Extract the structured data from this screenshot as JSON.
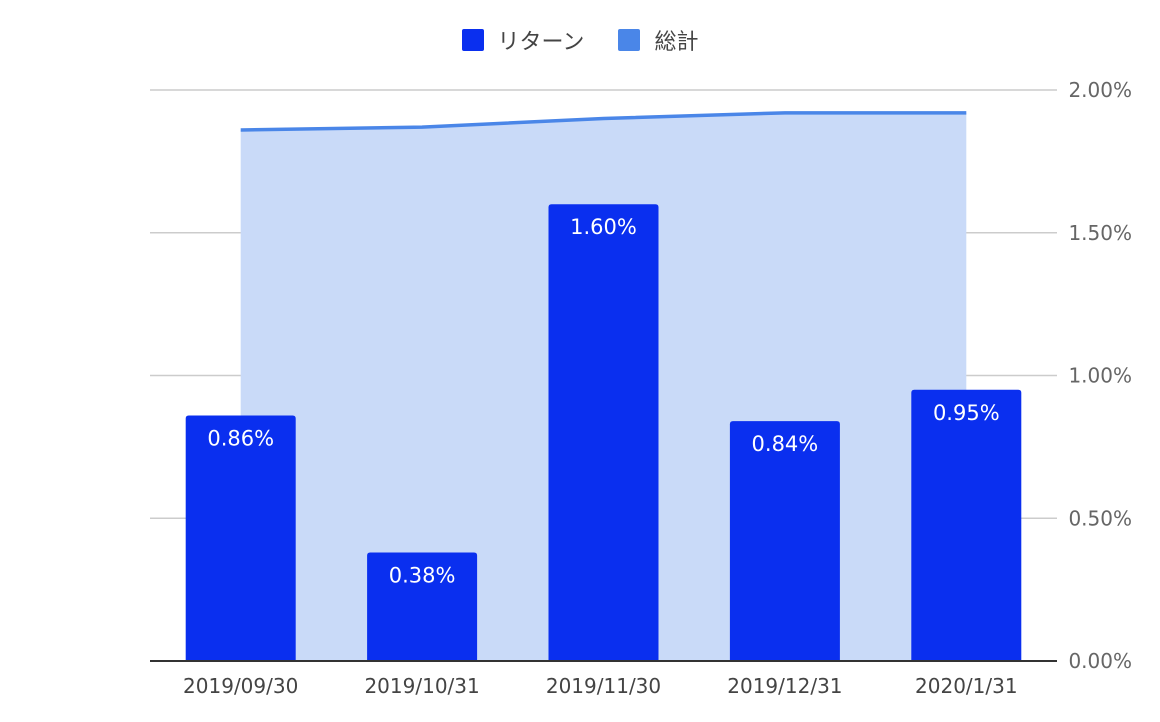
{
  "chart_data": {
    "type": "bar",
    "categories": [
      "2019/09/30",
      "2019/10/31",
      "2019/11/30",
      "2019/12/31",
      "2020/1/31"
    ],
    "series": [
      {
        "name": "リターン",
        "type": "bar",
        "color": "#0A2FEF",
        "values": [
          0.86,
          0.38,
          1.6,
          0.84,
          0.95
        ],
        "labels": [
          "0.86%",
          "0.38%",
          "1.60%",
          "0.84%",
          "0.95%"
        ]
      },
      {
        "name": "総計",
        "type": "area",
        "color": "#4A86E8",
        "fill": "#C9DAF8",
        "values": [
          1.86,
          1.87,
          1.9,
          1.92,
          1.92
        ]
      }
    ],
    "y_axis": {
      "position": "right",
      "min": 0,
      "max": 2.0,
      "ticks": [
        0,
        0.5,
        1.0,
        1.5,
        2.0
      ],
      "tick_labels": [
        "0.00%",
        "0.50%",
        "1.00%",
        "1.50%",
        "2.00%"
      ]
    },
    "legend": {
      "placement": "top-center"
    },
    "grid": true
  }
}
